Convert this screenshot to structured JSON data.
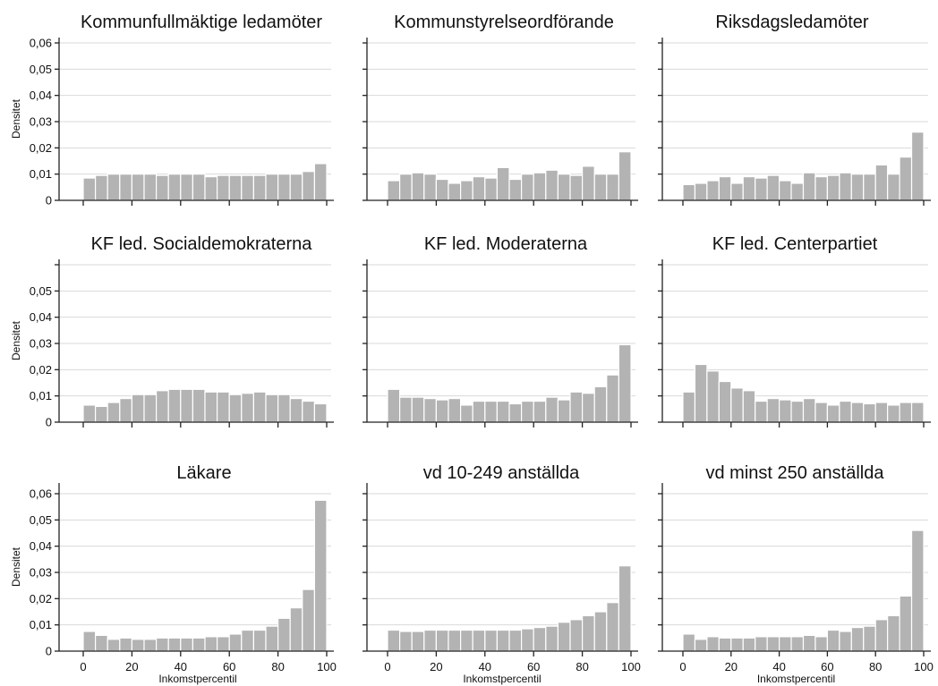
{
  "chart_data": [
    {
      "type": "bar",
      "title": "Kommunfullmäktige ledamöter",
      "ylabel": "Densitet",
      "xlabel": "",
      "ylim": [
        0,
        0.06
      ],
      "yticks": [
        "0",
        "0,01",
        "0,02",
        "0,03",
        "0,04",
        "0,05",
        "0,06"
      ],
      "xlim": [
        0,
        100
      ],
      "xticks": [],
      "bin_starts": [
        0,
        5,
        10,
        15,
        20,
        25,
        30,
        35,
        40,
        45,
        50,
        55,
        60,
        65,
        70,
        75,
        80,
        85,
        90,
        95
      ],
      "values": [
        0.0085,
        0.0095,
        0.01,
        0.01,
        0.01,
        0.01,
        0.0095,
        0.01,
        0.01,
        0.01,
        0.009,
        0.0095,
        0.0095,
        0.0095,
        0.0095,
        0.01,
        0.01,
        0.01,
        0.011,
        0.014
      ]
    },
    {
      "type": "bar",
      "title": "Kommunstyrelseordförande",
      "ylabel": "",
      "xlabel": "",
      "ylim": [
        0,
        0.06
      ],
      "yticks": [],
      "xlim": [
        0,
        100
      ],
      "xticks": [],
      "bin_starts": [
        0,
        5,
        10,
        15,
        20,
        25,
        30,
        35,
        40,
        45,
        50,
        55,
        60,
        65,
        70,
        75,
        80,
        85,
        90,
        95
      ],
      "values": [
        0.0075,
        0.01,
        0.0105,
        0.01,
        0.008,
        0.0065,
        0.0075,
        0.009,
        0.0085,
        0.0125,
        0.008,
        0.01,
        0.0105,
        0.0115,
        0.01,
        0.0095,
        0.013,
        0.01,
        0.01,
        0.0185
      ]
    },
    {
      "type": "bar",
      "title": "Riksdagsledamöter",
      "ylabel": "",
      "xlabel": "",
      "ylim": [
        0,
        0.06
      ],
      "yticks": [],
      "xlim": [
        0,
        100
      ],
      "xticks": [],
      "bin_starts": [
        0,
        5,
        10,
        15,
        20,
        25,
        30,
        35,
        40,
        45,
        50,
        55,
        60,
        65,
        70,
        75,
        80,
        85,
        90,
        95
      ],
      "values": [
        0.006,
        0.0065,
        0.0075,
        0.009,
        0.0065,
        0.009,
        0.0085,
        0.0095,
        0.0075,
        0.0065,
        0.0105,
        0.009,
        0.0095,
        0.0105,
        0.01,
        0.01,
        0.0135,
        0.01,
        0.0165,
        0.026
      ]
    },
    {
      "type": "bar",
      "title": "KF led. Socialdemokraterna",
      "ylabel": "Densitet",
      "xlabel": "",
      "ylim": [
        0,
        0.06
      ],
      "yticks": [
        "0",
        "0,01",
        "0,02",
        "0,03",
        "0,04",
        "0,05"
      ],
      "xlim": [
        0,
        100
      ],
      "xticks": [],
      "bin_starts": [
        0,
        5,
        10,
        15,
        20,
        25,
        30,
        35,
        40,
        45,
        50,
        55,
        60,
        65,
        70,
        75,
        80,
        85,
        90,
        95
      ],
      "values": [
        0.0065,
        0.006,
        0.0075,
        0.009,
        0.0105,
        0.0105,
        0.012,
        0.0125,
        0.0125,
        0.0125,
        0.0115,
        0.0115,
        0.0105,
        0.011,
        0.0115,
        0.0105,
        0.0105,
        0.009,
        0.008,
        0.007
      ]
    },
    {
      "type": "bar",
      "title": "KF led. Moderaterna",
      "ylabel": "",
      "xlabel": "",
      "ylim": [
        0,
        0.06
      ],
      "yticks": [],
      "xlim": [
        0,
        100
      ],
      "xticks": [],
      "bin_starts": [
        0,
        5,
        10,
        15,
        20,
        25,
        30,
        35,
        40,
        45,
        50,
        55,
        60,
        65,
        70,
        75,
        80,
        85,
        90,
        95
      ],
      "values": [
        0.0125,
        0.0095,
        0.0095,
        0.009,
        0.0085,
        0.009,
        0.0065,
        0.008,
        0.008,
        0.008,
        0.007,
        0.008,
        0.008,
        0.0095,
        0.0085,
        0.0115,
        0.011,
        0.0135,
        0.018,
        0.0295
      ]
    },
    {
      "type": "bar",
      "title": "KF led. Centerpartiet",
      "ylabel": "",
      "xlabel": "",
      "ylim": [
        0,
        0.06
      ],
      "yticks": [],
      "xlim": [
        0,
        100
      ],
      "xticks": [],
      "bin_starts": [
        0,
        5,
        10,
        15,
        20,
        25,
        30,
        35,
        40,
        45,
        50,
        55,
        60,
        65,
        70,
        75,
        80,
        85,
        90,
        95
      ],
      "values": [
        0.0115,
        0.022,
        0.0195,
        0.0155,
        0.013,
        0.012,
        0.008,
        0.009,
        0.0085,
        0.008,
        0.009,
        0.0075,
        0.0065,
        0.008,
        0.0075,
        0.007,
        0.0075,
        0.0065,
        0.0075,
        0.0075
      ]
    },
    {
      "type": "bar",
      "title": "Läkare",
      "ylabel": "Densitet",
      "xlabel": "Inkomstpercentil",
      "ylim": [
        0,
        0.06
      ],
      "yticks": [
        "0",
        "0,01",
        "0,02",
        "0,03",
        "0,04",
        "0,05",
        "0,06"
      ],
      "xlim": [
        0,
        100
      ],
      "xticks": [
        "0",
        "20",
        "40",
        "60",
        "80",
        "100"
      ],
      "bin_starts": [
        0,
        5,
        10,
        15,
        20,
        25,
        30,
        35,
        40,
        45,
        50,
        55,
        60,
        65,
        70,
        75,
        80,
        85,
        90,
        95
      ],
      "values": [
        0.0075,
        0.006,
        0.0045,
        0.005,
        0.0045,
        0.0045,
        0.005,
        0.005,
        0.005,
        0.005,
        0.0055,
        0.0055,
        0.0065,
        0.008,
        0.008,
        0.0095,
        0.0125,
        0.0165,
        0.0235,
        0.0575
      ]
    },
    {
      "type": "bar",
      "title": "vd 10-249 anställda",
      "ylabel": "",
      "xlabel": "Inkomstpercentil",
      "ylim": [
        0,
        0.06
      ],
      "yticks": [],
      "xlim": [
        0,
        100
      ],
      "xticks": [
        "0",
        "20",
        "40",
        "60",
        "80",
        "100"
      ],
      "bin_starts": [
        0,
        5,
        10,
        15,
        20,
        25,
        30,
        35,
        40,
        45,
        50,
        55,
        60,
        65,
        70,
        75,
        80,
        85,
        90,
        95
      ],
      "values": [
        0.008,
        0.0075,
        0.0075,
        0.008,
        0.008,
        0.008,
        0.008,
        0.008,
        0.008,
        0.008,
        0.008,
        0.0085,
        0.009,
        0.0095,
        0.011,
        0.012,
        0.0135,
        0.015,
        0.0185,
        0.0325
      ]
    },
    {
      "type": "bar",
      "title": "vd minst 250 anställda",
      "ylabel": "",
      "xlabel": "Inkomstpercentil",
      "ylim": [
        0,
        0.06
      ],
      "yticks": [],
      "xlim": [
        0,
        100
      ],
      "xticks": [
        "0",
        "20",
        "40",
        "60",
        "80",
        "100"
      ],
      "bin_starts": [
        0,
        5,
        10,
        15,
        20,
        25,
        30,
        35,
        40,
        45,
        50,
        55,
        60,
        65,
        70,
        75,
        80,
        85,
        90,
        95
      ],
      "values": [
        0.0065,
        0.0045,
        0.0055,
        0.005,
        0.005,
        0.005,
        0.0055,
        0.0055,
        0.0055,
        0.0055,
        0.006,
        0.0055,
        0.008,
        0.0075,
        0.009,
        0.0095,
        0.012,
        0.0135,
        0.021,
        0.046
      ]
    }
  ]
}
